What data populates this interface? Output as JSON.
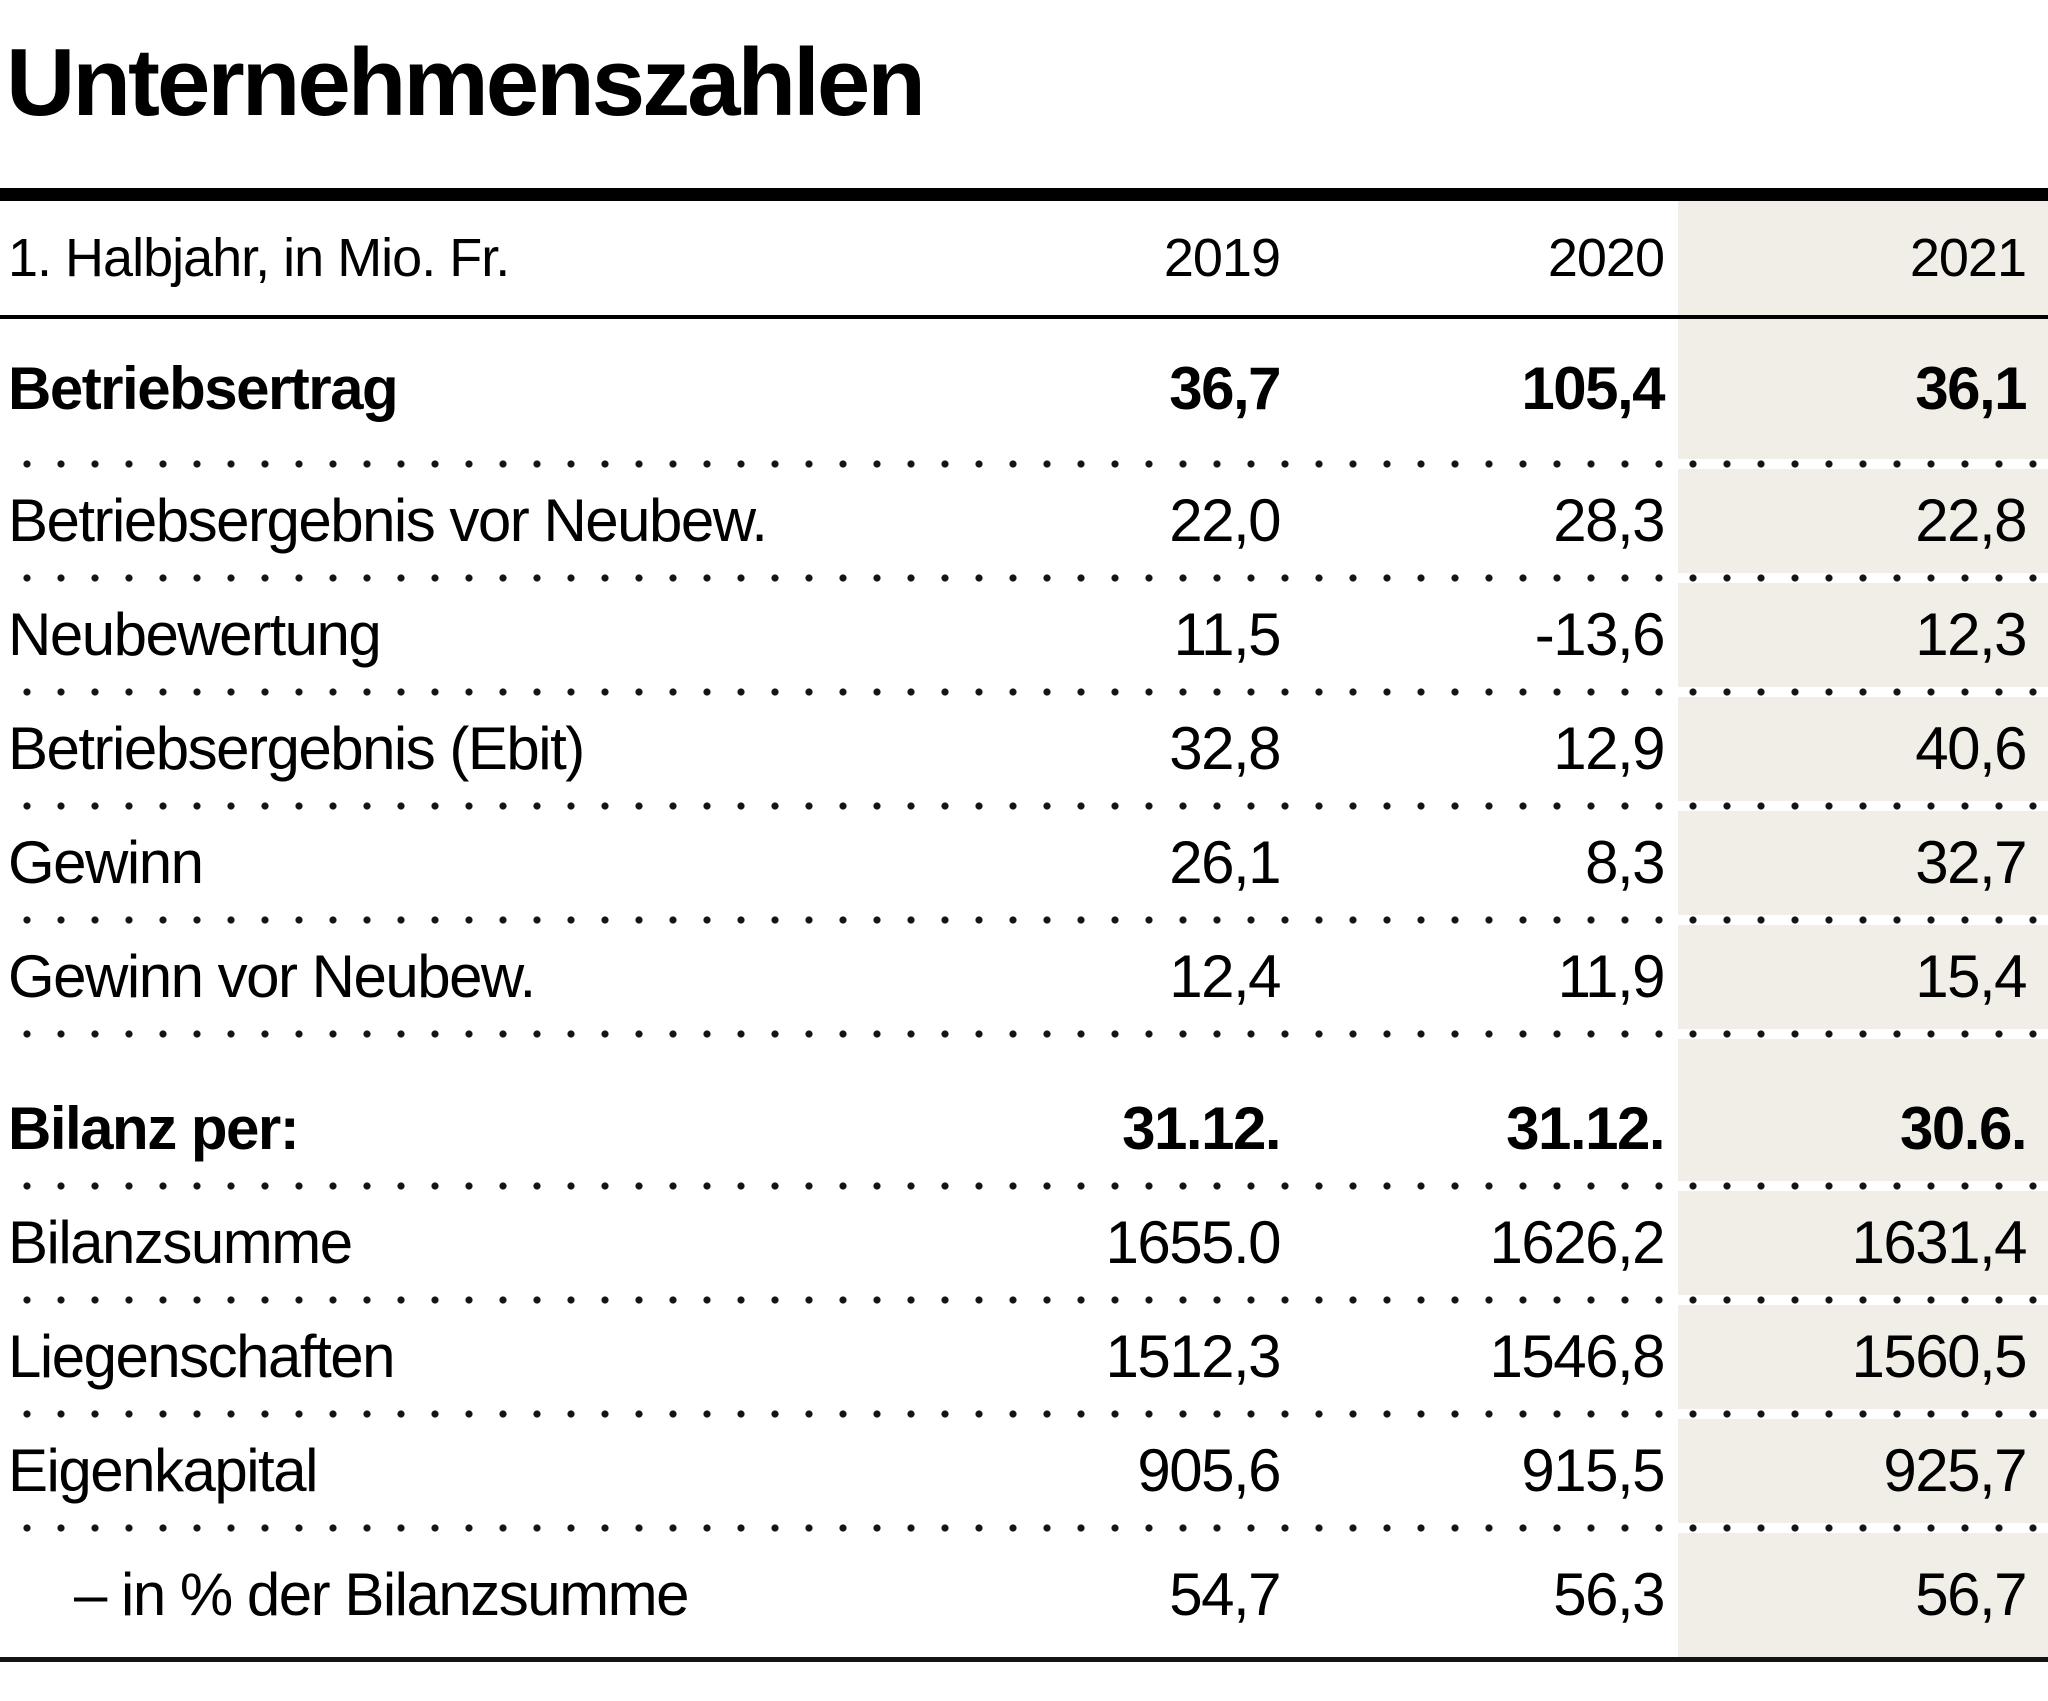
{
  "title": "Unternehmenszahlen",
  "table": {
    "header": {
      "label": "1. Halbjahr, in Mio. Fr.",
      "cols": [
        "2019",
        "2020",
        "2021"
      ]
    },
    "rows": [
      {
        "label": "Betriebsertrag",
        "bold": true,
        "values": [
          "36,7",
          "105,4",
          "36,1"
        ]
      },
      {
        "label": "Betriebsergebnis vor Neubew.",
        "values": [
          "22,0",
          "28,3",
          "22,8"
        ]
      },
      {
        "label": "Neubewertung",
        "values": [
          "11,5",
          "-13,6",
          "12,3"
        ]
      },
      {
        "label": "Betriebsergebnis (Ebit)",
        "values": [
          "32,8",
          "12,9",
          "40,6"
        ]
      },
      {
        "label": "Gewinn",
        "values": [
          "26,1",
          "8,3",
          "32,7"
        ]
      },
      {
        "label": "Gewinn vor Neubew.",
        "values": [
          "12,4",
          "11,9",
          "15,4"
        ]
      },
      {
        "label": "Bilanz per:",
        "bold": true,
        "section_start": true,
        "values": [
          "31.12.",
          "31.12.",
          "30.6."
        ]
      },
      {
        "label": "Bilanzsumme",
        "values": [
          "1655.0",
          "1626,2",
          "1631,4"
        ]
      },
      {
        "label": "Liegenschaften",
        "values": [
          "1512,3",
          "1546,8",
          "1560,5"
        ]
      },
      {
        "label": "Eigenkapital",
        "values": [
          "905,6",
          "915,5",
          "925,7"
        ]
      },
      {
        "label": "– in % der Bilanzsumme",
        "indent": true,
        "values": [
          "54,7",
          "56,3",
          "56,7"
        ]
      }
    ]
  },
  "colors": {
    "highlight_column": "#f0eee7",
    "text": "#000000",
    "rule": "#000000",
    "dot": "#141414"
  },
  "chart_data": {
    "type": "table",
    "title": "Unternehmenszahlen",
    "unit_note": "1. Halbjahr, in Mio. Fr.",
    "categories": [
      "2019",
      "2020",
      "2021"
    ],
    "highlighted_category": "2021",
    "series": [
      {
        "name": "Betriebsertrag",
        "values": [
          "36,7",
          "105,4",
          "36,1"
        ]
      },
      {
        "name": "Betriebsergebnis vor Neubew.",
        "values": [
          "22,0",
          "28,3",
          "22,8"
        ]
      },
      {
        "name": "Neubewertung",
        "values": [
          "11,5",
          "-13,6",
          "12,3"
        ]
      },
      {
        "name": "Betriebsergebnis (Ebit)",
        "values": [
          "32,8",
          "12,9",
          "40,6"
        ]
      },
      {
        "name": "Gewinn",
        "values": [
          "26,1",
          "8,3",
          "32,7"
        ]
      },
      {
        "name": "Gewinn vor Neubew.",
        "values": [
          "12,4",
          "11,9",
          "15,4"
        ]
      },
      {
        "name": "Bilanz per:",
        "values": [
          "31.12.",
          "31.12.",
          "30.6."
        ]
      },
      {
        "name": "Bilanzsumme",
        "values": [
          "1655.0",
          "1626,2",
          "1631,4"
        ]
      },
      {
        "name": "Liegenschaften",
        "values": [
          "1512,3",
          "1546,8",
          "1560,5"
        ]
      },
      {
        "name": "Eigenkapital",
        "values": [
          "905,6",
          "915,5",
          "925,7"
        ]
      },
      {
        "name": "– in % der Bilanzsumme",
        "values": [
          "54,7",
          "56,3",
          "56,7"
        ]
      }
    ]
  }
}
